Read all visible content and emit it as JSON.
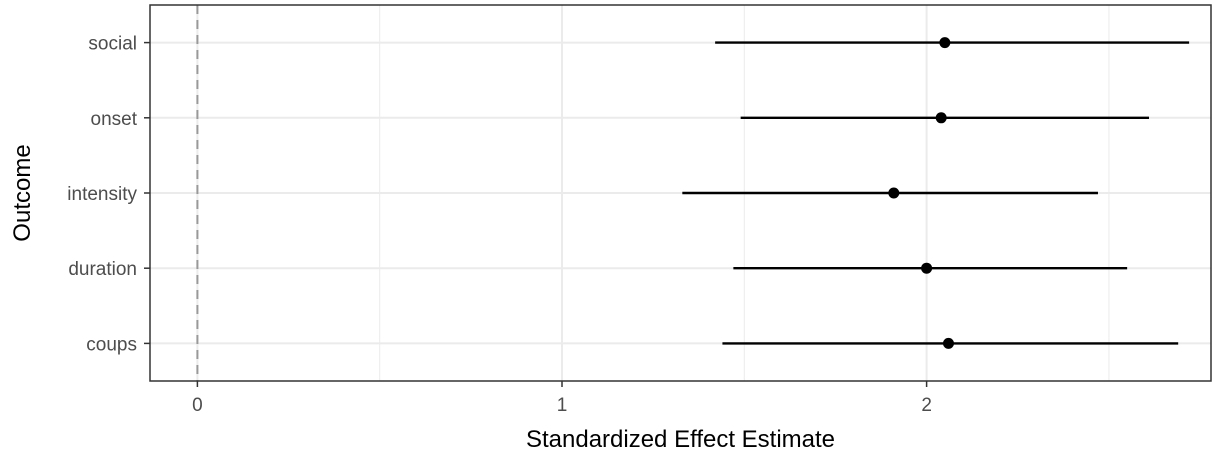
{
  "chart_data": {
    "type": "scatter",
    "title": "",
    "xlabel": "Standardized Effect Estimate",
    "ylabel": "Outcome",
    "xlim": [
      -0.13,
      2.78
    ],
    "x_ticks": [
      "0",
      "1",
      "2"
    ],
    "x_tick_values": [
      0,
      1,
      2
    ],
    "reference_line": {
      "x": 0,
      "style": "dashed",
      "color": "#999999"
    },
    "grid": true,
    "categories": [
      "social",
      "onset",
      "intensity",
      "duration",
      "coups"
    ],
    "series": [
      {
        "estimates": [
          2.05,
          2.04,
          1.91,
          2.0,
          2.06
        ],
        "ci_low": [
          1.42,
          1.49,
          1.33,
          1.47,
          1.44
        ],
        "ci_high": [
          2.72,
          2.61,
          2.47,
          2.55,
          2.69
        ]
      }
    ],
    "colors": {
      "points": "#000000",
      "grid": "#ebebeb",
      "frame": "#333333"
    }
  }
}
